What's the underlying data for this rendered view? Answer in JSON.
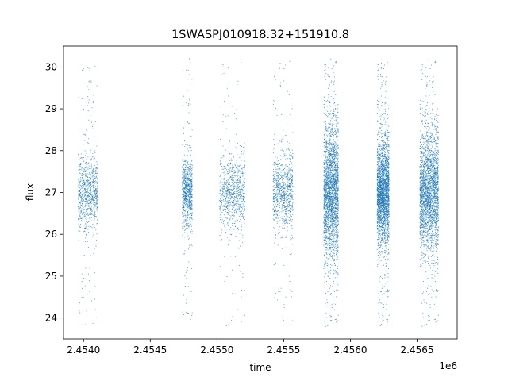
{
  "chart_data": {
    "type": "scatter",
    "title": "1SWASPJ010918.32+151910.8",
    "xlabel": "time",
    "ylabel": "flux",
    "x_offset_label": "1e6",
    "xlim": [
      2453850,
      2456800
    ],
    "ylim": [
      23.5,
      30.5
    ],
    "xticks": [
      2454000,
      2454500,
      2455000,
      2455500,
      2456000,
      2456500
    ],
    "xtick_labels": [
      "2.4540",
      "2.4545",
      "2.4550",
      "2.4555",
      "2.4560",
      "2.4565"
    ],
    "yticks": [
      24,
      25,
      26,
      27,
      28,
      29,
      30
    ],
    "ytick_labels": [
      "24",
      "25",
      "26",
      "27",
      "28",
      "29",
      "30"
    ],
    "grid": false,
    "marker_color": "#1f77b4",
    "series": [
      {
        "clusters": [
          {
            "x_start": 2453960,
            "x_end": 2454105,
            "y_center": 27.0,
            "y_spread": 0.45,
            "density": "medium"
          },
          {
            "x_start": 2454740,
            "x_end": 2454815,
            "y_center": 27.0,
            "y_spread": 0.4,
            "density": "medium"
          },
          {
            "x_start": 2455020,
            "x_end": 2455210,
            "y_center": 27.0,
            "y_spread": 0.45,
            "density": "medium"
          },
          {
            "x_start": 2455420,
            "x_end": 2455570,
            "y_center": 27.0,
            "y_spread": 0.45,
            "density": "medium"
          },
          {
            "x_start": 2455800,
            "x_end": 2455910,
            "y_center": 27.0,
            "y_spread": 0.8,
            "density": "high"
          },
          {
            "x_start": 2456200,
            "x_end": 2456290,
            "y_center": 27.0,
            "y_spread": 0.6,
            "density": "high"
          },
          {
            "x_start": 2456520,
            "x_end": 2456660,
            "y_center": 27.0,
            "y_spread": 0.7,
            "density": "high"
          }
        ]
      }
    ]
  }
}
